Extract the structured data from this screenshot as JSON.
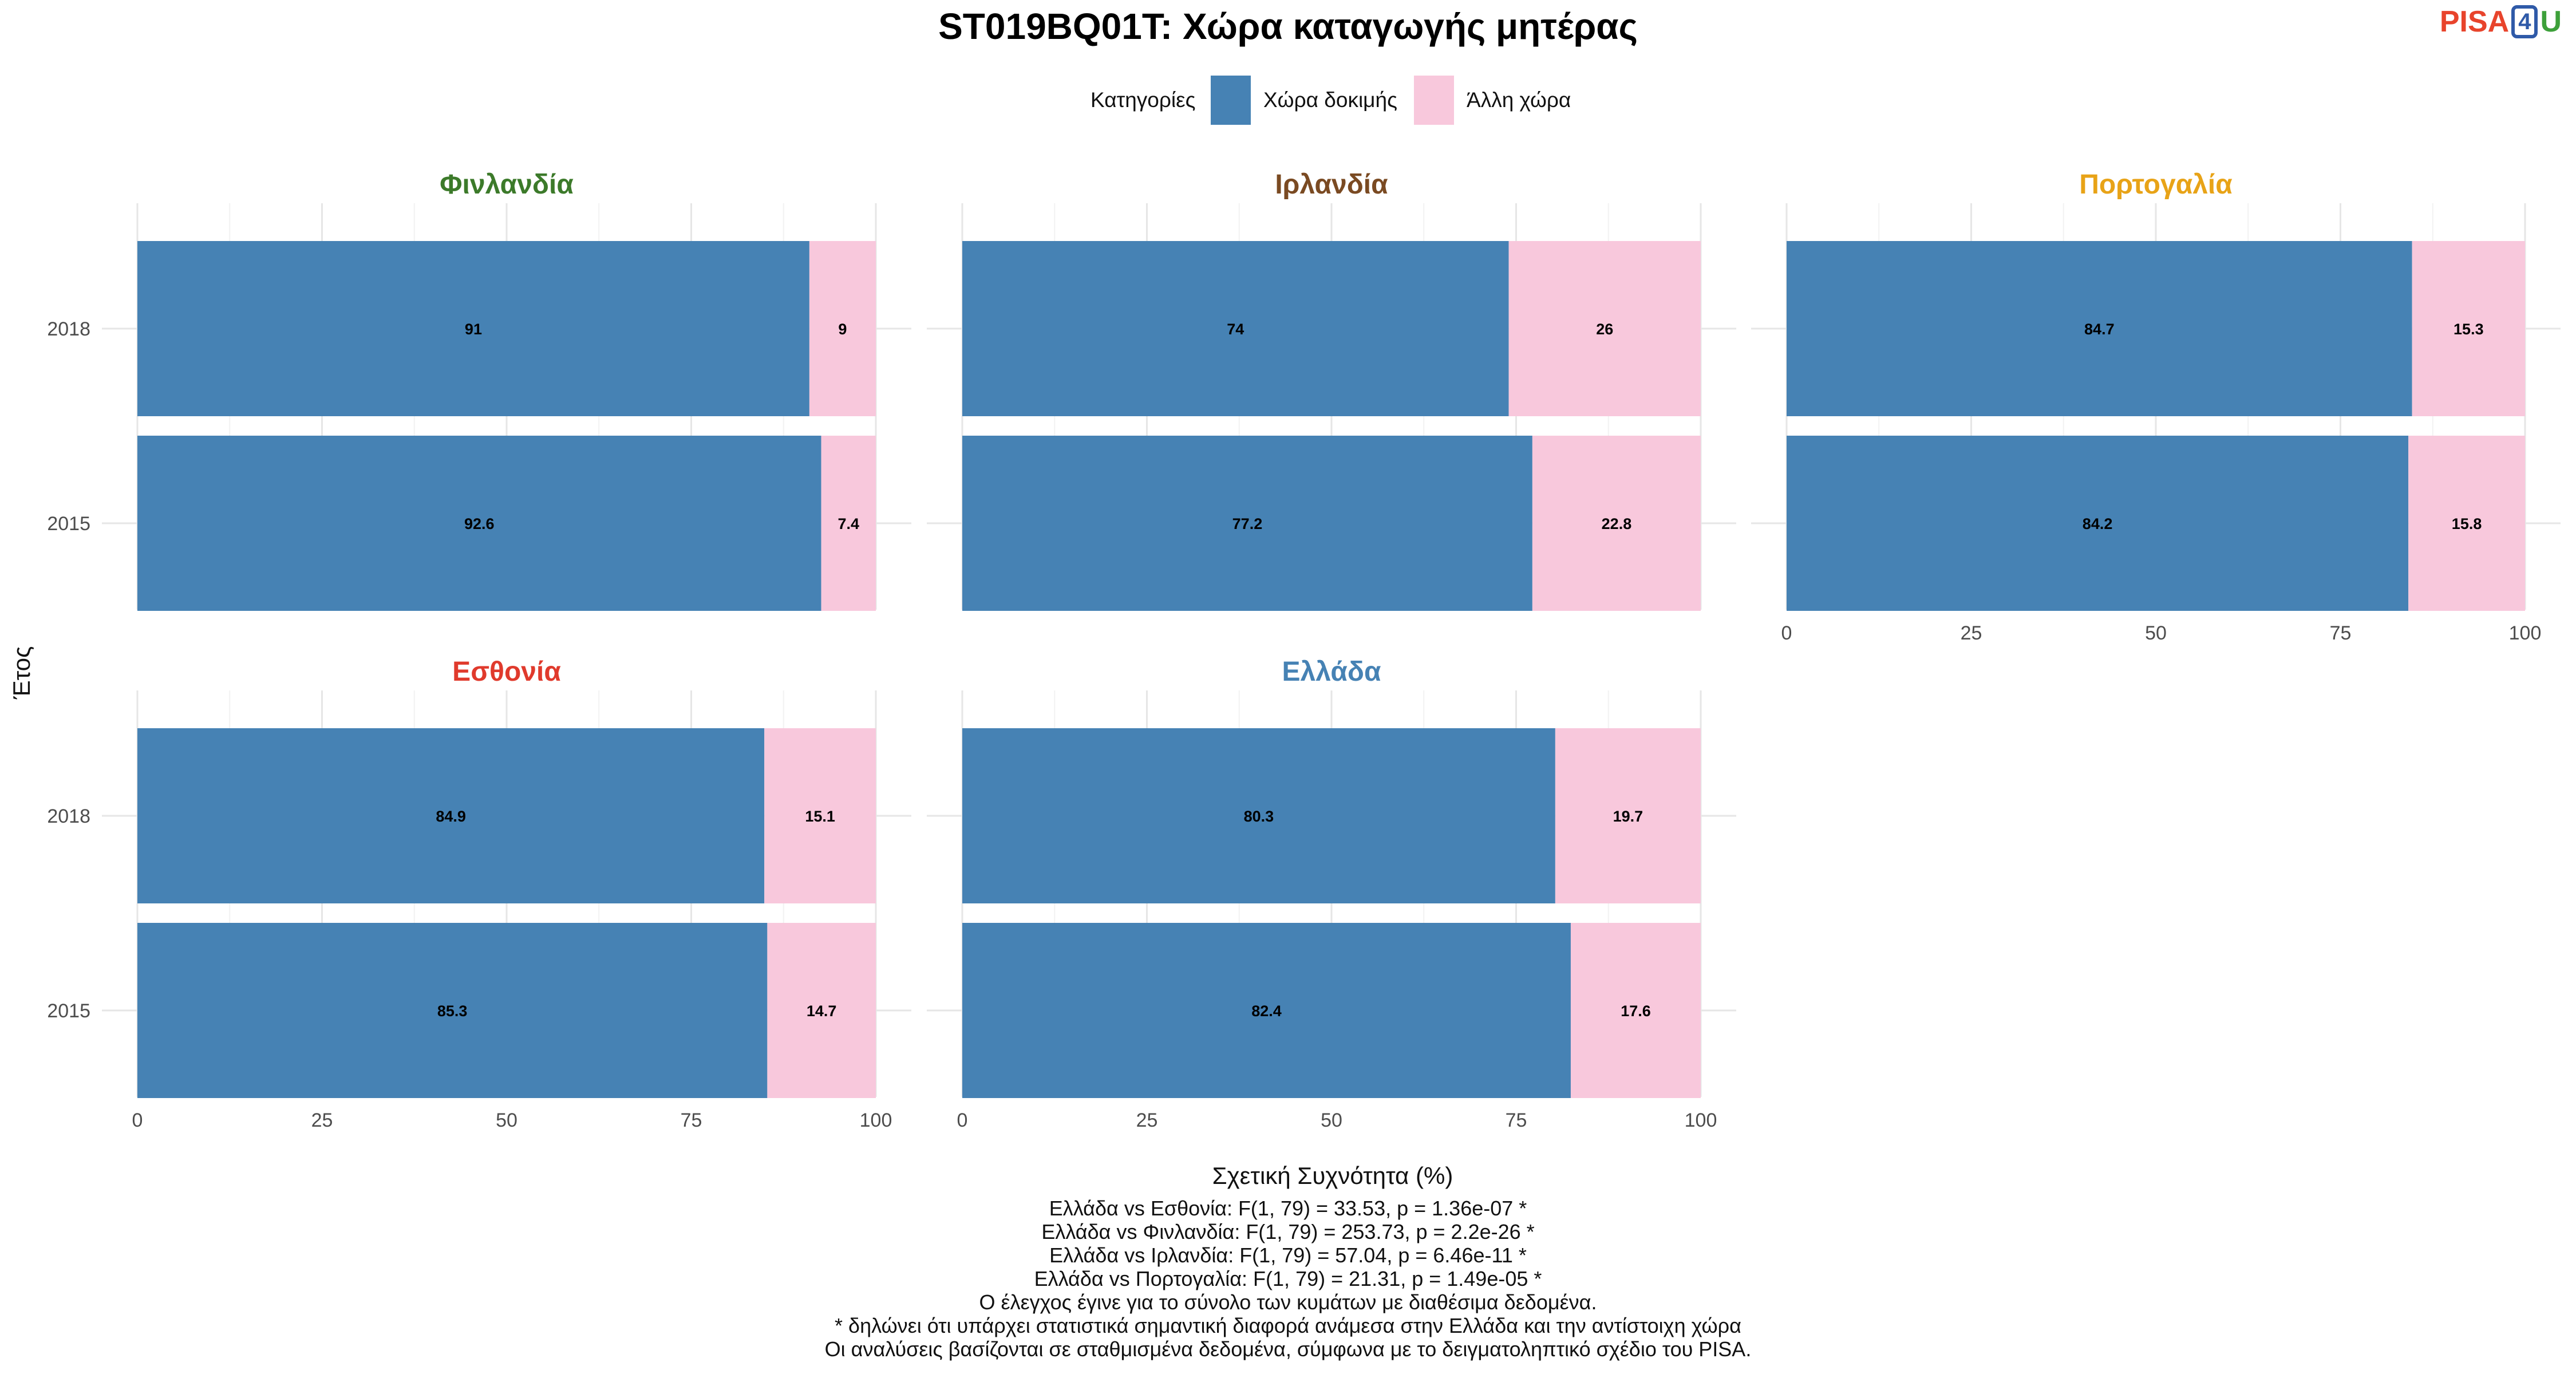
{
  "chart_data": {
    "type": "bar",
    "orientation": "horizontal",
    "stacked": true,
    "title": "ST019BQ01T: Χώρα καταγωγής μητέρας",
    "ylabel": "Έτος",
    "xlabel": "Σχετική Συχνότητα (%)",
    "xlim": [
      0,
      100
    ],
    "xticks": [
      "0",
      "25",
      "50",
      "75",
      "100"
    ],
    "categories": [
      "2018",
      "2015"
    ],
    "legend": {
      "title": "Κατηγορίες",
      "position": "top",
      "items": [
        {
          "name": "Χώρα δοκιμής",
          "color": "#4682b4"
        },
        {
          "name": "Άλλη χώρα",
          "color": "#f8c8dc"
        }
      ]
    },
    "panels": [
      {
        "name": "Φινλανδία",
        "color": "#3c7a2a",
        "series": [
          {
            "name": "Χώρα δοκιμής",
            "values": [
              91,
              92.6
            ],
            "labels": [
              "91",
              "92.6"
            ]
          },
          {
            "name": "Άλλη χώρα",
            "values": [
              9,
              7.4
            ],
            "labels": [
              "9",
              "7.4"
            ]
          }
        ]
      },
      {
        "name": "Ιρλανδία",
        "color": "#7a4a22",
        "series": [
          {
            "name": "Χώρα δοκιμής",
            "values": [
              74,
              77.2
            ],
            "labels": [
              "74",
              "77.2"
            ]
          },
          {
            "name": "Άλλη χώρα",
            "values": [
              26,
              22.8
            ],
            "labels": [
              "26",
              "22.8"
            ]
          }
        ]
      },
      {
        "name": "Πορτογαλία",
        "color": "#e8a317",
        "series": [
          {
            "name": "Χώρα δοκιμής",
            "values": [
              84.7,
              84.2
            ],
            "labels": [
              "84.7",
              "84.2"
            ]
          },
          {
            "name": "Άλλη χώρα",
            "values": [
              15.3,
              15.8
            ],
            "labels": [
              "15.3",
              "15.8"
            ]
          }
        ]
      },
      {
        "name": "Εσθονία",
        "color": "#e03a2c",
        "series": [
          {
            "name": "Χώρα δοκιμής",
            "values": [
              84.9,
              85.3
            ],
            "labels": [
              "84.9",
              "85.3"
            ]
          },
          {
            "name": "Άλλη χώρα",
            "values": [
              15.1,
              14.7
            ],
            "labels": [
              "15.1",
              "14.7"
            ]
          }
        ]
      },
      {
        "name": "Ελλάδα",
        "color": "#4682b4",
        "series": [
          {
            "name": "Χώρα δοκιμής",
            "values": [
              80.3,
              82.4
            ],
            "labels": [
              "80.3",
              "82.4"
            ]
          },
          {
            "name": "Άλλη χώρα",
            "values": [
              19.7,
              17.6
            ],
            "labels": [
              "19.7",
              "17.6"
            ]
          }
        ]
      }
    ]
  },
  "logo": {
    "pisa": "PISA",
    "four": "4",
    "u": "U"
  },
  "notes": [
    "Ελλάδα vs Εσθονία: F(1, 79) = 33.53, p = 1.36e-07 *",
    "Ελλάδα vs Φινλανδία: F(1, 79) = 253.73, p = 2.2e-26 *",
    "Ελλάδα vs Ιρλανδία: F(1, 79) = 57.04, p = 6.46e-11 *",
    "Ελλάδα vs Πορτογαλία: F(1, 79) = 21.31, p = 1.49e-05 *",
    "Ο έλεγχος έγινε για το σύνολο των κυμάτων με διαθέσιμα δεδομένα.",
    "* δηλώνει ότι υπάρχει στατιστικά σημαντική διαφορά ανάμεσα στην Ελλάδα και την αντίστοιχη χώρα",
    "Οι αναλύσεις βασίζονται σε σταθμισμένα δεδομένα, σύμφωνα με το δειγματοληπτικό σχέδιο του PISA."
  ]
}
